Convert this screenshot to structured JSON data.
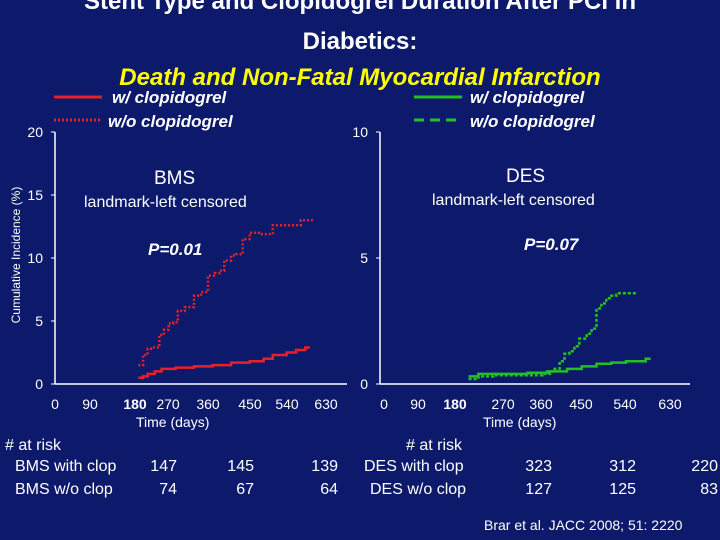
{
  "title": {
    "line1": "Stent Type and Clopidogrel Duration After PCI in",
    "line2": "Diabetics:",
    "line3": "Death and Non-Fatal Myocardial Infarction"
  },
  "colors": {
    "background": "#0d1a6b",
    "red": "#e8202a",
    "green": "#22c022",
    "title_highlight": "#ffff00"
  },
  "legend_left": {
    "with": "w/ clopidogrel",
    "without": "w/o clopidogrel"
  },
  "legend_right": {
    "with": "w/ clopidogrel",
    "without": "w/o clopidogrel"
  },
  "y_axis_title": "Cumulative Incidence (%)",
  "citation": "Brar et al. JACC 2008; 51: 2220",
  "chart_data": [
    {
      "type": "line",
      "panel": "BMS",
      "label": "BMS",
      "subtitle": "landmark-left censored",
      "pvalue": "P=0.01",
      "xlabel": "Time (days)",
      "ylabel": "Cumulative Incidence (%)",
      "xlim": [
        0,
        630
      ],
      "ylim": [
        0,
        20
      ],
      "x_ticks": [
        "0",
        "90",
        "180",
        "270",
        "360",
        "450",
        "540",
        "630"
      ],
      "y_ticks": [
        "0",
        "5",
        "10",
        "15",
        "20"
      ],
      "series": [
        {
          "name": "w/ clopidogrel",
          "style": "solid",
          "points": [
            [
              180,
              0.5
            ],
            [
              190,
              0.6
            ],
            [
              200,
              0.8
            ],
            [
              215,
              1.0
            ],
            [
              230,
              1.2
            ],
            [
              260,
              1.3
            ],
            [
              300,
              1.4
            ],
            [
              340,
              1.5
            ],
            [
              380,
              1.7
            ],
            [
              420,
              1.8
            ],
            [
              450,
              2.0
            ],
            [
              470,
              2.3
            ],
            [
              500,
              2.5
            ],
            [
              520,
              2.7
            ],
            [
              540,
              2.9
            ],
            [
              550,
              2.9
            ]
          ]
        },
        {
          "name": "w/o clopidogrel",
          "style": "dotted",
          "points": [
            [
              180,
              1.5
            ],
            [
              190,
              2.3
            ],
            [
              200,
              2.8
            ],
            [
              210,
              2.9
            ],
            [
              220,
              2.9
            ],
            [
              225,
              3.9
            ],
            [
              235,
              4.3
            ],
            [
              245,
              4.8
            ],
            [
              255,
              4.9
            ],
            [
              265,
              5.8
            ],
            [
              280,
              6.1
            ],
            [
              300,
              7.0
            ],
            [
              315,
              7.3
            ],
            [
              330,
              8.6
            ],
            [
              345,
              8.8
            ],
            [
              355,
              9.0
            ],
            [
              365,
              9.8
            ],
            [
              380,
              10.2
            ],
            [
              390,
              10.3
            ],
            [
              405,
              11.5
            ],
            [
              420,
              12.0
            ],
            [
              440,
              11.9
            ],
            [
              470,
              12.6
            ],
            [
              500,
              12.6
            ],
            [
              520,
              12.6
            ],
            [
              530,
              13.0
            ],
            [
              550,
              13.0
            ],
            [
              560,
              13.0
            ]
          ]
        }
      ],
      "risk_table": {
        "header": "# at risk",
        "rows": [
          {
            "label": "BMS with clop",
            "values": [
              "147",
              "145",
              "139"
            ]
          },
          {
            "label": "BMS w/o clop",
            "values": [
              "74",
              "67",
              "64"
            ]
          }
        ]
      }
    },
    {
      "type": "line",
      "panel": "DES",
      "label": "DES",
      "subtitle": "landmark-left censored",
      "pvalue": "P=0.07",
      "xlabel": "Time (days)",
      "ylabel": "Cumulative Incidence (%)",
      "xlim": [
        0,
        630
      ],
      "ylim": [
        0,
        10
      ],
      "x_ticks": [
        "0",
        "90",
        "180",
        "270",
        "360",
        "450",
        "540",
        "630"
      ],
      "y_ticks": [
        "0",
        "5",
        "10"
      ],
      "series": [
        {
          "name": "w/ clopidogrel",
          "style": "solid",
          "points": [
            [
              180,
              0.3
            ],
            [
              200,
              0.4
            ],
            [
              230,
              0.4
            ],
            [
              260,
              0.4
            ],
            [
              300,
              0.45
            ],
            [
              340,
              0.5
            ],
            [
              380,
              0.6
            ],
            [
              410,
              0.7
            ],
            [
              440,
              0.8
            ],
            [
              470,
              0.85
            ],
            [
              500,
              0.9
            ],
            [
              540,
              1.0
            ],
            [
              550,
              1.0
            ]
          ]
        },
        {
          "name": "w/o clopidogrel",
          "style": "dashed",
          "points": [
            [
              180,
              0.2
            ],
            [
              200,
              0.3
            ],
            [
              230,
              0.35
            ],
            [
              260,
              0.35
            ],
            [
              300,
              0.35
            ],
            [
              330,
              0.4
            ],
            [
              345,
              0.5
            ],
            [
              355,
              0.6
            ],
            [
              365,
              0.9
            ],
            [
              375,
              1.2
            ],
            [
              385,
              1.3
            ],
            [
              395,
              1.5
            ],
            [
              405,
              1.8
            ],
            [
              420,
              2.0
            ],
            [
              430,
              2.2
            ],
            [
              440,
              3.0
            ],
            [
              450,
              3.2
            ],
            [
              460,
              3.4
            ],
            [
              470,
              3.5
            ],
            [
              480,
              3.6
            ],
            [
              500,
              3.6
            ],
            [
              520,
              3.6
            ]
          ]
        }
      ],
      "risk_table": {
        "header": "# at risk",
        "rows": [
          {
            "label": "DES with clop",
            "values": [
              "323",
              "312",
              "220"
            ]
          },
          {
            "label": "DES w/o clop",
            "values": [
              "127",
              "125",
              "83"
            ]
          }
        ]
      }
    }
  ]
}
